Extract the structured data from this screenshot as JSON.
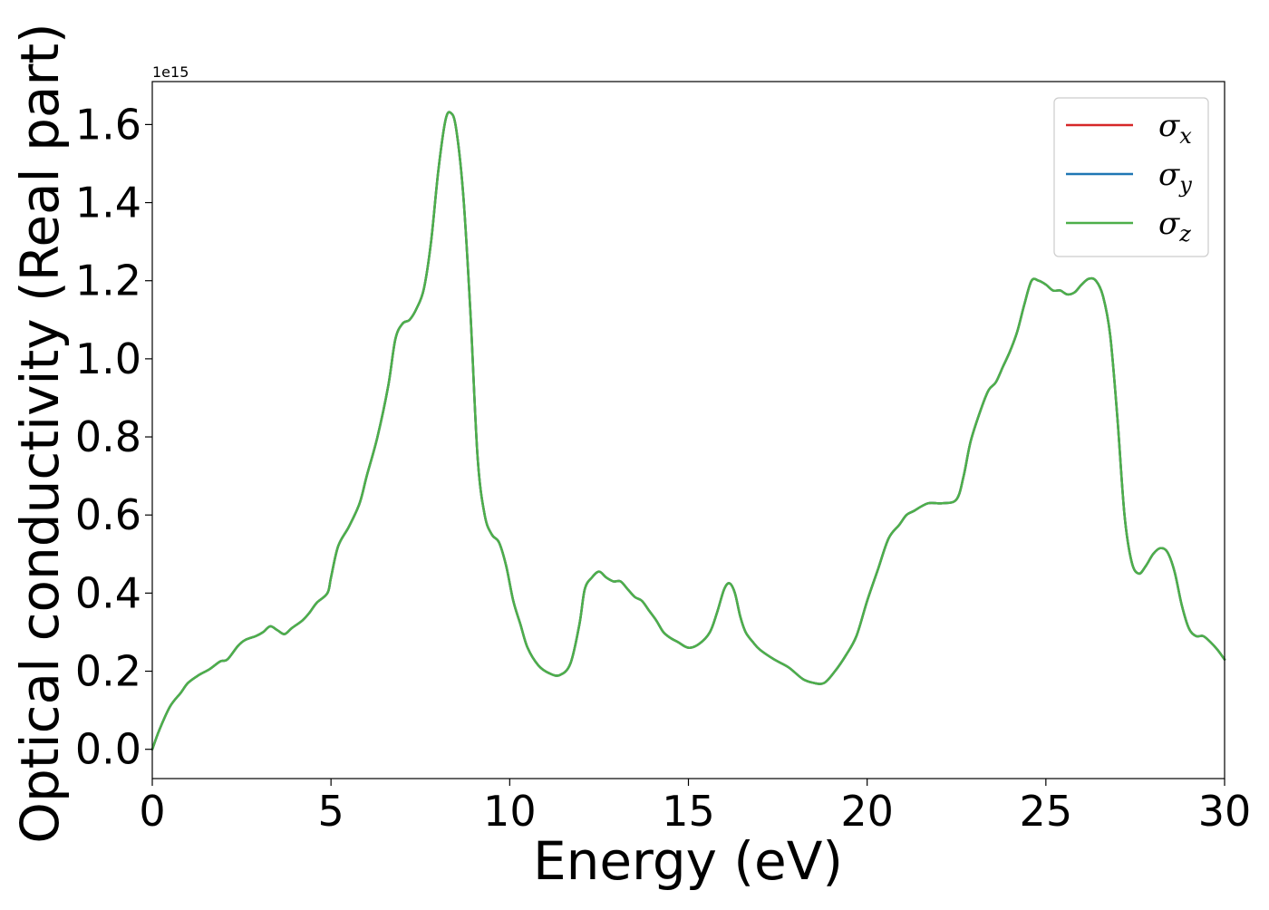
{
  "chart_data": {
    "type": "line",
    "title": "",
    "xlabel": "Energy (eV)",
    "ylabel": "Optical conductivity (Real part)",
    "y_offset_label": "1e15",
    "y_scale_factor": 1000000000000000.0,
    "xlim": [
      0,
      30
    ],
    "ylim": [
      -0.075,
      1.71
    ],
    "x_ticks": [
      0,
      5,
      10,
      15,
      20,
      25,
      30
    ],
    "x_tick_labels": [
      "0",
      "5",
      "10",
      "15",
      "20",
      "25",
      "30"
    ],
    "y_ticks": [
      0.0,
      0.2,
      0.4,
      0.6,
      0.8,
      1.0,
      1.2,
      1.4,
      1.6
    ],
    "y_tick_labels": [
      "0.0",
      "0.2",
      "0.4",
      "0.6",
      "0.8",
      "1.0",
      "1.2",
      "1.4",
      "1.6"
    ],
    "grid": false,
    "legend_position": "top-right",
    "x": [
      0,
      0.2,
      0.5,
      0.8,
      1.0,
      1.3,
      1.6,
      1.9,
      2.1,
      2.4,
      2.6,
      2.9,
      3.1,
      3.3,
      3.5,
      3.7,
      3.9,
      4.2,
      4.4,
      4.6,
      4.9,
      5.0,
      5.2,
      5.5,
      5.8,
      6.0,
      6.3,
      6.6,
      6.8,
      7.0,
      7.2,
      7.4,
      7.6,
      7.8,
      8.0,
      8.2,
      8.35,
      8.5,
      8.7,
      8.9,
      9.1,
      9.3,
      9.5,
      9.7,
      9.9,
      10.1,
      10.3,
      10.5,
      10.8,
      11.1,
      11.4,
      11.7,
      11.95,
      12.1,
      12.3,
      12.5,
      12.7,
      12.9,
      13.1,
      13.3,
      13.5,
      13.7,
      13.9,
      14.1,
      14.3,
      14.5,
      14.7,
      15.0,
      15.3,
      15.6,
      15.8,
      16.0,
      16.15,
      16.3,
      16.45,
      16.6,
      16.8,
      17.0,
      17.4,
      17.8,
      18.2,
      18.5,
      18.8,
      19.1,
      19.4,
      19.7,
      20.0,
      20.3,
      20.6,
      20.9,
      21.1,
      21.3,
      21.7,
      22.1,
      22.5,
      22.7,
      22.9,
      23.2,
      23.4,
      23.6,
      23.8,
      24.0,
      24.2,
      24.4,
      24.6,
      24.8,
      25.0,
      25.2,
      25.4,
      25.6,
      25.8,
      26.0,
      26.2,
      26.4,
      26.6,
      26.8,
      27.0,
      27.2,
      27.4,
      27.6,
      27.8,
      28.0,
      28.2,
      28.4,
      28.6,
      28.8,
      29.0,
      29.2,
      29.4,
      29.6,
      29.8,
      30.0
    ],
    "series": [
      {
        "name": "x",
        "color": "#d62728",
        "values": [
          0.0,
          0.05,
          0.11,
          0.145,
          0.17,
          0.19,
          0.205,
          0.225,
          0.23,
          0.265,
          0.28,
          0.29,
          0.3,
          0.315,
          0.305,
          0.295,
          0.31,
          0.33,
          0.35,
          0.375,
          0.4,
          0.44,
          0.52,
          0.57,
          0.63,
          0.7,
          0.8,
          0.93,
          1.05,
          1.09,
          1.1,
          1.13,
          1.18,
          1.3,
          1.48,
          1.61,
          1.63,
          1.59,
          1.42,
          1.12,
          0.75,
          0.6,
          0.55,
          0.53,
          0.47,
          0.38,
          0.32,
          0.26,
          0.215,
          0.195,
          0.19,
          0.22,
          0.32,
          0.41,
          0.44,
          0.455,
          0.44,
          0.43,
          0.43,
          0.41,
          0.39,
          0.38,
          0.355,
          0.33,
          0.3,
          0.285,
          0.275,
          0.26,
          0.27,
          0.3,
          0.35,
          0.41,
          0.425,
          0.4,
          0.34,
          0.3,
          0.275,
          0.255,
          0.23,
          0.21,
          0.18,
          0.17,
          0.17,
          0.2,
          0.24,
          0.29,
          0.38,
          0.46,
          0.54,
          0.575,
          0.6,
          0.61,
          0.63,
          0.63,
          0.64,
          0.7,
          0.79,
          0.875,
          0.92,
          0.94,
          0.98,
          1.02,
          1.07,
          1.14,
          1.2,
          1.2,
          1.19,
          1.175,
          1.175,
          1.165,
          1.17,
          1.19,
          1.205,
          1.2,
          1.16,
          1.06,
          0.85,
          0.6,
          0.48,
          0.45,
          0.47,
          0.5,
          0.515,
          0.505,
          0.455,
          0.37,
          0.31,
          0.29,
          0.29,
          0.275,
          0.255,
          0.23
        ]
      },
      {
        "name": "y",
        "color": "#1f77b4",
        "values": [
          0.0,
          0.05,
          0.11,
          0.145,
          0.17,
          0.19,
          0.205,
          0.225,
          0.23,
          0.265,
          0.28,
          0.29,
          0.3,
          0.315,
          0.305,
          0.295,
          0.31,
          0.33,
          0.35,
          0.375,
          0.4,
          0.44,
          0.52,
          0.57,
          0.63,
          0.7,
          0.8,
          0.93,
          1.05,
          1.09,
          1.1,
          1.13,
          1.18,
          1.3,
          1.48,
          1.61,
          1.63,
          1.59,
          1.42,
          1.12,
          0.75,
          0.6,
          0.55,
          0.53,
          0.47,
          0.38,
          0.32,
          0.26,
          0.215,
          0.195,
          0.19,
          0.22,
          0.32,
          0.41,
          0.44,
          0.455,
          0.44,
          0.43,
          0.43,
          0.41,
          0.39,
          0.38,
          0.355,
          0.33,
          0.3,
          0.285,
          0.275,
          0.26,
          0.27,
          0.3,
          0.35,
          0.41,
          0.425,
          0.4,
          0.34,
          0.3,
          0.275,
          0.255,
          0.23,
          0.21,
          0.18,
          0.17,
          0.17,
          0.2,
          0.24,
          0.29,
          0.38,
          0.46,
          0.54,
          0.575,
          0.6,
          0.61,
          0.63,
          0.63,
          0.64,
          0.7,
          0.79,
          0.875,
          0.92,
          0.94,
          0.98,
          1.02,
          1.07,
          1.14,
          1.2,
          1.2,
          1.19,
          1.175,
          1.175,
          1.165,
          1.17,
          1.19,
          1.205,
          1.2,
          1.16,
          1.06,
          0.85,
          0.6,
          0.48,
          0.45,
          0.47,
          0.5,
          0.515,
          0.505,
          0.455,
          0.37,
          0.31,
          0.29,
          0.29,
          0.275,
          0.255,
          0.23
        ]
      },
      {
        "name": "z",
        "color": "#4daf4a",
        "values": [
          0.0,
          0.05,
          0.11,
          0.145,
          0.17,
          0.19,
          0.205,
          0.225,
          0.23,
          0.265,
          0.28,
          0.29,
          0.3,
          0.315,
          0.305,
          0.295,
          0.31,
          0.33,
          0.35,
          0.375,
          0.4,
          0.44,
          0.52,
          0.57,
          0.63,
          0.7,
          0.8,
          0.93,
          1.05,
          1.09,
          1.1,
          1.13,
          1.18,
          1.3,
          1.48,
          1.61,
          1.63,
          1.59,
          1.42,
          1.12,
          0.75,
          0.6,
          0.55,
          0.53,
          0.47,
          0.38,
          0.32,
          0.26,
          0.215,
          0.195,
          0.19,
          0.22,
          0.32,
          0.41,
          0.44,
          0.455,
          0.44,
          0.43,
          0.43,
          0.41,
          0.39,
          0.38,
          0.355,
          0.33,
          0.3,
          0.285,
          0.275,
          0.26,
          0.27,
          0.3,
          0.35,
          0.41,
          0.425,
          0.4,
          0.34,
          0.3,
          0.275,
          0.255,
          0.23,
          0.21,
          0.18,
          0.17,
          0.17,
          0.2,
          0.24,
          0.29,
          0.38,
          0.46,
          0.54,
          0.575,
          0.6,
          0.61,
          0.63,
          0.63,
          0.64,
          0.7,
          0.79,
          0.875,
          0.92,
          0.94,
          0.98,
          1.02,
          1.07,
          1.14,
          1.2,
          1.2,
          1.19,
          1.175,
          1.175,
          1.165,
          1.17,
          1.19,
          1.205,
          1.2,
          1.16,
          1.06,
          0.85,
          0.6,
          0.48,
          0.45,
          0.47,
          0.5,
          0.515,
          0.505,
          0.455,
          0.37,
          0.31,
          0.29,
          0.29,
          0.275,
          0.255,
          0.23
        ]
      }
    ],
    "legend": [
      {
        "symbol": "σ",
        "subscript": "x",
        "color": "#d62728"
      },
      {
        "symbol": "σ",
        "subscript": "y",
        "color": "#1f77b4"
      },
      {
        "symbol": "σ",
        "subscript": "z",
        "color": "#4daf4a"
      }
    ]
  }
}
